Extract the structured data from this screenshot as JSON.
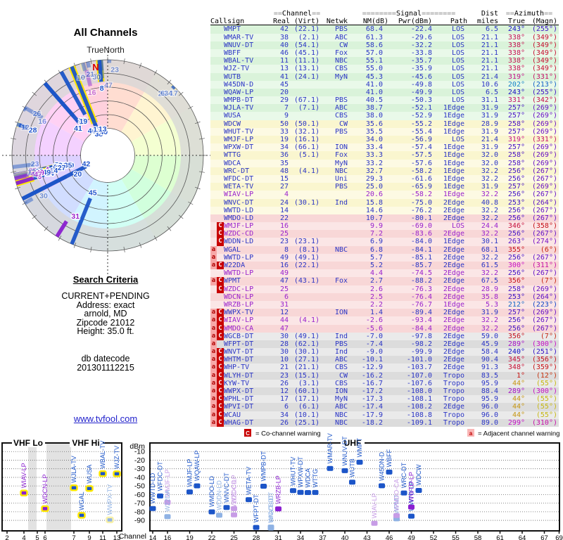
{
  "header": {
    "polar_title": "All Channels",
    "true_north": "TrueNorth",
    "north_marker": "N"
  },
  "search": {
    "heading": "Search Criteria",
    "lines": [
      "CURRENT+PENDING",
      "Address: exact",
      "arnold, MD",
      "Zipcode 21012",
      "Height: 35.0 ft."
    ],
    "db_label": "db datecode",
    "db_code": "201301112215"
  },
  "link": "www.tvfool.com",
  "legend": {
    "co_symbol": "C",
    "co_text": "= Co-channel warning",
    "adj_symbol": "a",
    "adj_text": "= Adjacent channel warning"
  },
  "table": {
    "group": {
      "channel_pre": "==",
      "channel": "Channel",
      "channel_post": "==",
      "signal_pre": "========",
      "signal": "Signal",
      "signal_post": "========",
      "dist": "Dist",
      "azimuth_pre": "==",
      "azimuth": "Azimuth",
      "azimuth_post": "=="
    },
    "cols": [
      "Callsign",
      "Real",
      "(Virt)",
      "Netwk",
      "NM(dB)",
      "Pwr(dBm)",
      "Path",
      "miles",
      "True",
      "(Magn)"
    ]
  },
  "chart_data": {
    "type": "table",
    "title": "TV signal analysis — All Channels",
    "station_fields": [
      "callsign",
      "real_ch",
      "virtual_ch",
      "network",
      "nm_db",
      "pwr_dbm",
      "path",
      "miles",
      "azimuth_true_deg",
      "azimuth_magn_deg",
      "row_band",
      "pending",
      "warning"
    ],
    "stations": [
      [
        "WMPT",
        42,
        "22.1",
        "PBS",
        68.4,
        -22.4,
        "LOS",
        6.5,
        243,
        255,
        "green",
        false,
        ""
      ],
      [
        "WMAR-TV",
        38,
        "2.1",
        "ABC",
        61.3,
        -29.6,
        "LOS",
        21.1,
        338,
        349,
        "green",
        false,
        ""
      ],
      [
        "WNUV-DT",
        40,
        "54.1",
        "CW",
        58.6,
        -32.2,
        "LOS",
        21.1,
        338,
        349,
        "green",
        false,
        ""
      ],
      [
        "WBFF",
        46,
        "45.1",
        "Fox",
        57.0,
        -33.8,
        "LOS",
        21.1,
        338,
        349,
        "green",
        false,
        ""
      ],
      [
        "WBAL-TV",
        11,
        "11.1",
        "NBC",
        55.1,
        -35.7,
        "LOS",
        21.1,
        338,
        349,
        "green",
        false,
        ""
      ],
      [
        "WJZ-TV",
        13,
        "13.1",
        "CBS",
        55.0,
        -35.9,
        "LOS",
        21.1,
        338,
        349,
        "green",
        false,
        ""
      ],
      [
        "WUTB",
        41,
        "24.1",
        "MyN",
        45.3,
        -45.6,
        "LOS",
        21.4,
        319,
        331,
        "green",
        false,
        ""
      ],
      [
        "W45DN-D",
        45,
        null,
        null,
        41.0,
        -49.8,
        "LOS",
        10.6,
        202,
        213,
        "green",
        false,
        ""
      ],
      [
        "WQAW-LP",
        20,
        null,
        null,
        41.0,
        -49.9,
        "LOS",
        6.5,
        243,
        255,
        "green",
        false,
        ""
      ],
      [
        "WMPB-DT",
        29,
        "67.1",
        "PBS",
        40.5,
        -50.3,
        "LOS",
        31.1,
        331,
        342,
        "green",
        false,
        ""
      ],
      [
        "WJLA-TV",
        7,
        "7.1",
        "ABC",
        38.7,
        -52.1,
        "1Edge",
        31.9,
        257,
        269,
        "green",
        false,
        ""
      ],
      [
        "WUSA",
        9,
        null,
        "CBS",
        38.0,
        -52.9,
        "1Edge",
        31.9,
        257,
        269,
        "green",
        false,
        ""
      ],
      [
        "WDCW",
        50,
        "50.1",
        "CW",
        35.6,
        -55.2,
        "1Edge",
        28.9,
        258,
        269,
        "yellow",
        false,
        ""
      ],
      [
        "WHUT-TV",
        33,
        "32.1",
        "PBS",
        35.5,
        -55.4,
        "1Edge",
        31.9,
        257,
        269,
        "yellow",
        false,
        ""
      ],
      [
        "WMJF-LP",
        19,
        "16.1",
        null,
        34.0,
        -56.9,
        "LOS",
        21.4,
        319,
        331,
        "yellow",
        false,
        ""
      ],
      [
        "WPXW-DT",
        34,
        "66.1",
        "ION",
        33.4,
        -57.4,
        "1Edge",
        31.9,
        257,
        269,
        "yellow",
        false,
        ""
      ],
      [
        "WTTG",
        36,
        "5.1",
        "Fox",
        33.3,
        -57.5,
        "1Edge",
        32.0,
        258,
        269,
        "yellow",
        false,
        ""
      ],
      [
        "WDCA",
        35,
        null,
        "MyN",
        33.2,
        -57.6,
        "1Edge",
        32.0,
        258,
        269,
        "yellow",
        false,
        ""
      ],
      [
        "WRC-DT",
        48,
        "4.1",
        "NBC",
        32.7,
        -58.2,
        "1Edge",
        32.2,
        256,
        267,
        "yellow",
        false,
        ""
      ],
      [
        "WFDC-DT",
        15,
        null,
        "Uni",
        29.3,
        -61.6,
        "1Edge",
        32.2,
        256,
        267,
        "yellow",
        false,
        ""
      ],
      [
        "WETA-TV",
        27,
        null,
        "PBS",
        25.0,
        -65.9,
        "1Edge",
        31.9,
        257,
        269,
        "yellow",
        false,
        ""
      ],
      [
        "WIAV-LP",
        4,
        null,
        null,
        20.6,
        -58.2,
        "1Edge",
        32.2,
        256,
        267,
        "yellow",
        true,
        ""
      ],
      [
        "WNVC-DT",
        24,
        "30.1",
        "Ind",
        15.8,
        -75.0,
        "2Edge",
        40.8,
        253,
        264,
        "yellow",
        false,
        ""
      ],
      [
        "WWTD-LD",
        14,
        null,
        null,
        14.6,
        -76.2,
        "2Edge",
        32.2,
        256,
        267,
        "yellow",
        false,
        ""
      ],
      [
        "WMDO-LD",
        22,
        null,
        null,
        10.7,
        -80.1,
        "2Edge",
        32.2,
        256,
        267,
        "pink",
        false,
        ""
      ],
      [
        "WMJF-LP",
        16,
        null,
        null,
        9.9,
        -69.0,
        "LOS",
        24.4,
        346,
        358,
        "pink",
        true,
        "C"
      ],
      [
        "WZDC-CD",
        25,
        null,
        null,
        7.2,
        -83.6,
        "2Edge",
        32.2,
        256,
        267,
        "pink",
        true,
        "C"
      ],
      [
        "WDDN-LD",
        23,
        "23.1",
        null,
        6.9,
        -84.0,
        "1Edge",
        30.1,
        263,
        274,
        "pink",
        false,
        "C"
      ],
      [
        "WGAL",
        8,
        "8.1",
        "NBC",
        6.8,
        -84.1,
        "2Edge",
        68.1,
        355,
        6,
        "pink",
        false,
        "a"
      ],
      [
        "WWTD-LP",
        49,
        "49.1",
        null,
        5.7,
        -85.1,
        "2Edge",
        32.2,
        256,
        267,
        "pink",
        false,
        "a"
      ],
      [
        "W22DA",
        16,
        "22.1",
        null,
        5.2,
        -85.7,
        "2Edge",
        61.5,
        300,
        311,
        "pink",
        false,
        "aC"
      ],
      [
        "WWTD-LP",
        49,
        null,
        null,
        4.4,
        -74.5,
        "2Edge",
        32.2,
        256,
        267,
        "pink",
        true,
        ""
      ],
      [
        "WPMT",
        47,
        "43.1",
        "Fox",
        2.7,
        -88.2,
        "2Edge",
        67.5,
        356,
        7,
        "pink",
        false,
        "aC"
      ],
      [
        "WZDC-LP",
        25,
        null,
        null,
        2.6,
        -76.3,
        "2Edge",
        28.9,
        258,
        269,
        "pink",
        true,
        "C"
      ],
      [
        "WDCN-LP",
        6,
        null,
        null,
        2.5,
        -76.4,
        "2Edge",
        35.8,
        253,
        264,
        "pink",
        true,
        ""
      ],
      [
        "WRZB-LP",
        31,
        null,
        null,
        2.2,
        -76.7,
        "1Edge",
        5.3,
        212,
        223,
        "pink",
        true,
        ""
      ],
      [
        "WWPX-TV",
        12,
        null,
        "ION",
        1.4,
        -89.4,
        "2Edge",
        31.9,
        257,
        269,
        "pink",
        false,
        "aC"
      ],
      [
        "WIAV-LP",
        44,
        "4.1",
        null,
        -2.6,
        -93.4,
        "2Edge",
        32.2,
        256,
        267,
        "pink",
        true,
        "aC"
      ],
      [
        "WMDO-CA",
        47,
        null,
        null,
        -5.6,
        -84.4,
        "2Edge",
        32.2,
        256,
        267,
        "pink",
        true,
        "aC"
      ],
      [
        "WGCB-DT",
        30,
        "49.1",
        "Ind",
        -7.0,
        -97.8,
        "2Edge",
        59.0,
        356,
        7,
        "gray",
        false,
        "aC"
      ],
      [
        "WFPT-DT",
        28,
        "62.1",
        "PBS",
        -7.4,
        -98.2,
        "2Edge",
        45.9,
        289,
        300,
        "gray",
        false,
        "a"
      ],
      [
        "WNVT-DT",
        30,
        "30.1",
        "Ind",
        -9.0,
        -99.9,
        "2Edge",
        58.4,
        240,
        251,
        "gray",
        false,
        "aC"
      ],
      [
        "WHTM-DT",
        10,
        "27.1",
        "ABC",
        -10.1,
        -101.0,
        "2Edge",
        90.4,
        345,
        356,
        "gray",
        false,
        "aC"
      ],
      [
        "WHP-TV",
        21,
        "21.1",
        "CBS",
        -12.9,
        -103.7,
        "2Edge",
        91.3,
        348,
        359,
        "gray",
        false,
        "aC"
      ],
      [
        "WLYH-DT",
        23,
        "15.1",
        "CW",
        -16.2,
        -107.0,
        "Tropo",
        83.5,
        1,
        12,
        "gray",
        false,
        "aC"
      ],
      [
        "KYW-TV",
        26,
        "3.1",
        "CBS",
        -16.7,
        -107.6,
        "Tropo",
        95.9,
        44,
        55,
        "gray",
        false,
        "aC"
      ],
      [
        "WWPX-DT",
        12,
        "60.1",
        "ION",
        -17.2,
        -108.0,
        "Tropo",
        88.4,
        289,
        300,
        "gray",
        false,
        "aC"
      ],
      [
        "WPHL-DT",
        17,
        "17.1",
        "MyN",
        -17.3,
        -108.1,
        "Tropo",
        95.9,
        44,
        55,
        "gray",
        false,
        "aC"
      ],
      [
        "WPVI-DT",
        6,
        "6.1",
        "ABC",
        -17.4,
        -108.2,
        "2Edge",
        96.0,
        44,
        55,
        "gray",
        false,
        "aC"
      ],
      [
        "WCAU",
        34,
        "10.1",
        "NBC",
        -17.9,
        -108.8,
        "Tropo",
        96.0,
        44,
        55,
        "gray",
        false,
        "aC"
      ],
      [
        "WHAG-DT",
        26,
        "25.1",
        "NBC",
        -18.2,
        -109.1,
        "Tropo",
        89.0,
        299,
        310,
        "gray",
        false,
        "aC"
      ]
    ],
    "polar_plot": {
      "title": "All Channels",
      "north_label": "TrueNorth",
      "angle_field": "azimuth_true_deg",
      "length_field": "nm_db",
      "label_field": "real_ch"
    },
    "spectrum_plot": {
      "type": "scatter",
      "ylabel": "dBm",
      "xlabel": "Channel",
      "yticks": [
        -10,
        -20,
        -30,
        -40,
        -50,
        -60,
        -70,
        -80,
        -90
      ],
      "sections": [
        "VHF Lo",
        "VHF Hi",
        "UHF"
      ],
      "vhf_xticks": [
        2,
        4,
        5,
        6,
        7,
        9,
        11,
        13
      ],
      "uhf_xticks": [
        14,
        16,
        19,
        22,
        25,
        28,
        31,
        34,
        37,
        40,
        43,
        46,
        49,
        52,
        55,
        58,
        61,
        64,
        67,
        69
      ]
    }
  }
}
